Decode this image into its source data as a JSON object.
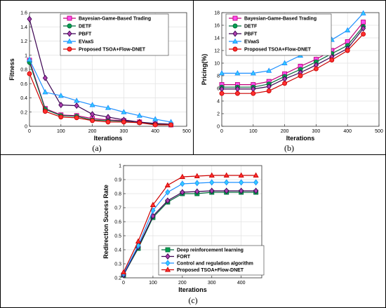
{
  "panels": [
    {
      "caption": "(a)",
      "xlabel": "Iterations",
      "ylabel": "Fitness"
    },
    {
      "caption": "(b)",
      "xlabel": "Iterations",
      "ylabel": "Pricing(%)"
    },
    {
      "caption": "(c)",
      "xlabel": "Iterations",
      "ylabel": "Redirection Sucess Rate"
    }
  ],
  "chart_data": [
    {
      "type": "line",
      "title": "",
      "xlabel": "Iterations",
      "ylabel": "Fitness",
      "xlim": [
        0,
        500
      ],
      "ylim": [
        0,
        1.6
      ],
      "xticks": [
        0,
        100,
        200,
        300,
        400,
        500
      ],
      "yticks": [
        0,
        0.2,
        0.4,
        0.6,
        0.8,
        1,
        1.2,
        1.4,
        1.6
      ],
      "grid": true,
      "legend": "top-right",
      "x": [
        0,
        50,
        100,
        150,
        200,
        250,
        300,
        350,
        400,
        450
      ],
      "series": [
        {
          "name": "Bayesian-Game-Based Trading",
          "color": "#c0007a",
          "fill": "#ff4df0",
          "marker": "square",
          "values": [
            0.93,
            0.25,
            0.16,
            0.15,
            0.11,
            0.09,
            0.08,
            0.06,
            0.03,
            0.02
          ]
        },
        {
          "name": "DETF",
          "color": "#006a3a",
          "fill": "#00a050",
          "marker": "circle",
          "values": [
            0.9,
            0.24,
            0.15,
            0.14,
            0.09,
            0.08,
            0.07,
            0.05,
            0.03,
            0.02
          ]
        },
        {
          "name": "PBFT",
          "color": "#3a0050",
          "fill": "#b040b0",
          "marker": "diamond",
          "values": [
            1.51,
            0.68,
            0.3,
            0.29,
            0.17,
            0.13,
            0.09,
            0.06,
            0.04,
            0.03
          ]
        },
        {
          "name": "EVaaS",
          "color": "#1e90ff",
          "fill": "#33ccff",
          "marker": "triangle",
          "values": [
            0.94,
            0.48,
            0.43,
            0.36,
            0.3,
            0.26,
            0.2,
            0.15,
            0.1,
            0.06
          ]
        },
        {
          "name": "Proposed TSOA+Flow-DNET",
          "color": "#cc0000",
          "fill": "#ff3030",
          "marker": "circle",
          "values": [
            0.74,
            0.21,
            0.13,
            0.12,
            0.08,
            0.06,
            0.06,
            0.05,
            0.02,
            0.02
          ]
        }
      ]
    },
    {
      "type": "line",
      "title": "",
      "xlabel": "Iterations",
      "ylabel": "Pricing(%)",
      "xlim": [
        0,
        500
      ],
      "ylim": [
        0,
        18
      ],
      "xticks": [
        0,
        100,
        200,
        300,
        400,
        500
      ],
      "yticks": [
        0,
        2,
        4,
        6,
        8,
        10,
        12,
        14,
        16,
        18
      ],
      "grid": true,
      "legend": "top-left",
      "x": [
        0,
        50,
        100,
        150,
        200,
        250,
        300,
        350,
        400,
        450
      ],
      "series": [
        {
          "name": "Bayesian-Game-Based Trading",
          "color": "#c0007a",
          "fill": "#ff4df0",
          "marker": "square",
          "values": [
            6.6,
            6.6,
            6.6,
            7.1,
            8.3,
            9.5,
            10.6,
            12.0,
            13.4,
            16.5
          ]
        },
        {
          "name": "DETF",
          "color": "#006a3a",
          "fill": "#00a050",
          "marker": "circle",
          "values": [
            6.2,
            6.2,
            6.2,
            6.7,
            7.9,
            9.0,
            10.2,
            11.5,
            12.8,
            15.8
          ]
        },
        {
          "name": "PBFT",
          "color": "#3a0050",
          "fill": "#b040b0",
          "marker": "diamond",
          "values": [
            5.9,
            5.9,
            5.9,
            6.3,
            7.5,
            8.5,
            9.7,
            11.0,
            12.3,
            15.5
          ]
        },
        {
          "name": "EVaaS",
          "color": "#1e90ff",
          "fill": "#33ccff",
          "marker": "triangle",
          "values": [
            8.4,
            8.4,
            8.4,
            8.8,
            10.0,
            11.2,
            12.4,
            13.7,
            15.2,
            17.9
          ]
        },
        {
          "name": "Proposed TSOA+Flow-DNET",
          "color": "#cc0000",
          "fill": "#ff3030",
          "marker": "circle",
          "values": [
            5.2,
            5.2,
            5.2,
            5.6,
            6.8,
            8.0,
            9.1,
            10.5,
            12.0,
            14.6
          ]
        }
      ]
    },
    {
      "type": "line",
      "title": "",
      "xlabel": "Iterations",
      "ylabel": "Redirection Sucess Rate",
      "xlim": [
        0,
        470
      ],
      "ylim": [
        0.2,
        1
      ],
      "xticks": [
        0,
        100,
        200,
        300,
        400
      ],
      "yticks": [
        0.2,
        0.3,
        0.4,
        0.5,
        0.6,
        0.7,
        0.8,
        0.9,
        1
      ],
      "grid": true,
      "legend": "bottom-right",
      "x": [
        0,
        50,
        100,
        150,
        200,
        250,
        300,
        350,
        400,
        450
      ],
      "series": [
        {
          "name": "Deep reinforcement learning",
          "color": "#006a3a",
          "fill": "#00a050",
          "marker": "square",
          "values": [
            0.22,
            0.41,
            0.63,
            0.74,
            0.8,
            0.8,
            0.81,
            0.81,
            0.81,
            0.81
          ]
        },
        {
          "name": "FORT",
          "color": "#3a0050",
          "fill": "#b040b0",
          "marker": "diamond",
          "values": [
            0.22,
            0.42,
            0.64,
            0.75,
            0.81,
            0.815,
            0.82,
            0.82,
            0.82,
            0.82
          ]
        },
        {
          "name": "Control and regulation algorithm",
          "color": "#1e90ff",
          "fill": "#33ccff",
          "marker": "diamond",
          "values": [
            0.23,
            0.43,
            0.68,
            0.81,
            0.87,
            0.875,
            0.88,
            0.88,
            0.88,
            0.88
          ]
        },
        {
          "name": "Proposed TSOA+Flow-DNET",
          "color": "#cc0000",
          "fill": "#ff3030",
          "marker": "triangle",
          "values": [
            0.24,
            0.46,
            0.72,
            0.86,
            0.92,
            0.925,
            0.93,
            0.93,
            0.93,
            0.93
          ]
        }
      ]
    }
  ]
}
